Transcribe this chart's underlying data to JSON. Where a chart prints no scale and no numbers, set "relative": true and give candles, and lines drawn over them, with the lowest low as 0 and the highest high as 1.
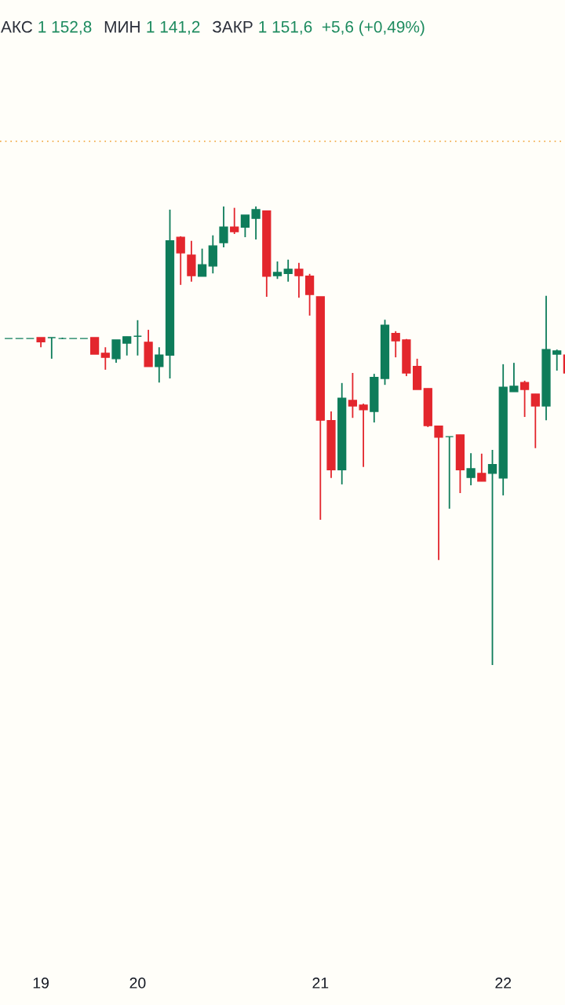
{
  "chart_data": {
    "type": "candlestick",
    "relative": true,
    "categories": [
      null,
      null,
      null,
      "19",
      null,
      null,
      null,
      null,
      null,
      null,
      null,
      null,
      "20",
      null,
      null,
      null,
      null,
      null,
      null,
      null,
      null,
      null,
      null,
      null,
      null,
      null,
      null,
      null,
      null,
      "21",
      null,
      null,
      null,
      null,
      null,
      null,
      null,
      null,
      null,
      null,
      null,
      null,
      null,
      null,
      null,
      null,
      "22",
      null,
      null,
      null,
      null,
      null,
      null
    ],
    "ohlc": [
      [
        0.712,
        0.712,
        0.712,
        0.712
      ],
      [
        0.712,
        0.712,
        0.712,
        0.712
      ],
      [
        0.712,
        0.712,
        0.712,
        0.712
      ],
      [
        0.714,
        0.714,
        0.693,
        0.705
      ],
      [
        0.714,
        0.714,
        0.668,
        0.714
      ],
      [
        0.712,
        0.714,
        0.711,
        0.712
      ],
      [
        0.712,
        0.712,
        0.712,
        0.712
      ],
      [
        0.712,
        0.712,
        0.712,
        0.712
      ],
      [
        0.714,
        0.714,
        0.678,
        0.678
      ],
      [
        0.68,
        0.693,
        0.644,
        0.671
      ],
      [
        0.668,
        0.709,
        0.659,
        0.709
      ],
      [
        0.702,
        0.716,
        0.675,
        0.716
      ],
      [
        0.717,
        0.752,
        0.675,
        0.717
      ],
      [
        0.704,
        0.731,
        0.651,
        0.651
      ],
      [
        0.651,
        0.693,
        0.616,
        0.676
      ],
      [
        0.676,
        0.993,
        0.625,
        0.925
      ],
      [
        0.933,
        0.935,
        0.829,
        0.899
      ],
      [
        0.894,
        0.925,
        0.836,
        0.849
      ],
      [
        0.848,
        0.908,
        0.848,
        0.873
      ],
      [
        0.87,
        0.937,
        0.854,
        0.914
      ],
      [
        0.921,
        1,
        0.911,
        0.955
      ],
      [
        0.955,
        0.997,
        0.94,
        0.945
      ],
      [
        0.955,
        0.981,
        0.933,
        0.981
      ],
      [
        0.974,
        1,
        0.928,
        0.993
      ],
      [
        0.99,
        0.99,
        0.803,
        0.848
      ],
      [
        0.849,
        0.88,
        0.842,
        0.856
      ],
      [
        0.854,
        0.884,
        0.836,
        0.863
      ],
      [
        0.863,
        0.877,
        0.801,
        0.849
      ],
      [
        0.848,
        0.853,
        0.762,
        0.808
      ],
      [
        0.803,
        0.803,
        0.317,
        0.534
      ],
      [
        0.533,
        0.553,
        0.408,
        0.426
      ],
      [
        0.426,
        0.615,
        0.394,
        0.582
      ],
      [
        0.577,
        0.637,
        0.539,
        0.565
      ],
      [
        0.567,
        0.57,
        0.432,
        0.557
      ],
      [
        0.553,
        0.635,
        0.529,
        0.627
      ],
      [
        0.625,
        0.753,
        0.611,
        0.741
      ],
      [
        0.723,
        0.728,
        0.671,
        0.707
      ],
      [
        0.709,
        0.711,
        0.63,
        0.637
      ],
      [
        0.651,
        0.668,
        0.601,
        0.601
      ],
      [
        0.603,
        0.603,
        0.519,
        0.522
      ],
      [
        0.521,
        0.521,
        0.229,
        0.497
      ],
      [
        0.498,
        0.498,
        0.341,
        0.498
      ],
      [
        0.502,
        0.502,
        0.375,
        0.426
      ],
      [
        0.409,
        0.462,
        0.392,
        0.428
      ],
      [
        0.418,
        0.461,
        0.401,
        0.401
      ],
      [
        0.418,
        0.469,
        0,
        0.437
      ],
      [
        0.408,
        0.656,
        0.37,
        0.606
      ],
      [
        0.596,
        0.659,
        0.596,
        0.608
      ],
      [
        0.616,
        0.62,
        0.541,
        0.601
      ],
      [
        0.591,
        0.591,
        0.473,
        0.565
      ],
      [
        0.565,
        0.805,
        0.534,
        0.688
      ],
      [
        0.678,
        0.688,
        0.642,
        0.685
      ],
      [
        0.676,
        0.68,
        0.635,
        0.637
      ]
    ],
    "colors": [
      "#0e7c5a",
      "#0e7c5a",
      "#0e7c5a",
      "#e3262d",
      "#0e7c5a",
      "#0e7c5a",
      "#0e7c5a",
      "#0e7c5a",
      "#e3262d",
      "#e3262d",
      "#0e7c5a",
      "#0e7c5a",
      "#0e7c5a",
      "#e3262d",
      "#0e7c5a",
      "#0e7c5a",
      "#e3262d",
      "#e3262d",
      "#0e7c5a",
      "#0e7c5a",
      "#0e7c5a",
      "#e3262d",
      "#0e7c5a",
      "#0e7c5a",
      "#e3262d",
      "#0e7c5a",
      "#0e7c5a",
      "#e3262d",
      "#e3262d",
      "#e3262d",
      "#e3262d",
      "#0e7c5a",
      "#e3262d",
      "#e3262d",
      "#0e7c5a",
      "#0e7c5a",
      "#e3262d",
      "#e3262d",
      "#e3262d",
      "#e3262d",
      "#e3262d",
      "#0e7c5a",
      "#e3262d",
      "#0e7c5a",
      "#e3262d",
      "#0e7c5a",
      "#0e7c5a",
      "#0e7c5a",
      "#e3262d",
      "#e3262d",
      "#0e7c5a",
      "#0e7c5a",
      "#e3262d"
    ],
    "ref_lines": [
      {
        "axis": "y",
        "value": 1.142,
        "color": "#f0a030",
        "line_style": "dotted"
      }
    ],
    "annotations": [
      "АКС",
      "1 152,8",
      "МИН",
      "1 141,2",
      "ЗАКР",
      "1 151,6  +5,6 (+0,49%)"
    ]
  }
}
